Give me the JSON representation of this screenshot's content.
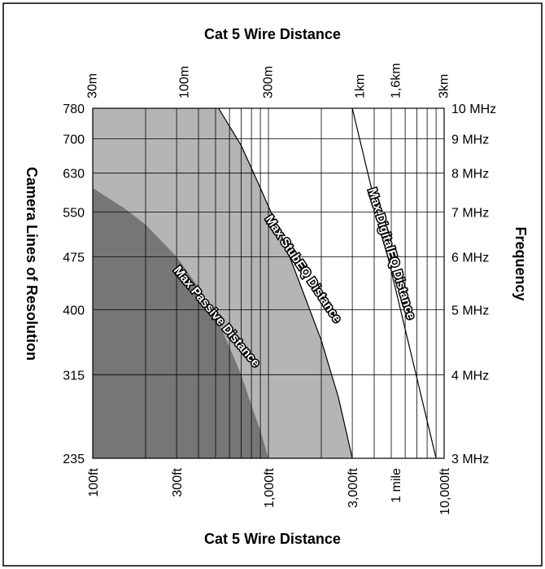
{
  "chart_data": {
    "type": "area",
    "title_top": "Cat 5  Wire Distance",
    "title_bottom": "Cat 5  Wire Distance",
    "ylabel_left": "Camera Lines of Resolution",
    "ylabel_right": "Frequency",
    "x_scale": "log",
    "x_range_ft": [
      100,
      10000
    ],
    "y_range_mhz": [
      3,
      10
    ],
    "grid": true,
    "top_ticks": [
      {
        "label": "30m",
        "ft": 98.4
      },
      {
        "label": "100m",
        "ft": 328
      },
      {
        "label": "300m",
        "ft": 984
      },
      {
        "label": "1km",
        "ft": 3281
      },
      {
        "label": "1,6km",
        "ft": 5249
      },
      {
        "label": "3km",
        "ft": 9843
      }
    ],
    "bottom_ticks": [
      {
        "label": "100ft",
        "ft": 100
      },
      {
        "label": "300ft",
        "ft": 300
      },
      {
        "label": "1,000ft",
        "ft": 1000
      },
      {
        "label": "3,000ft",
        "ft": 3000
      },
      {
        "label": "1 mile",
        "ft": 5280
      },
      {
        "label": "10,000ft",
        "ft": 10000
      }
    ],
    "left_ticks": [
      {
        "label": "780",
        "mhz": 10
      },
      {
        "label": "700",
        "mhz": 9
      },
      {
        "label": "630",
        "mhz": 8
      },
      {
        "label": "550",
        "mhz": 7
      },
      {
        "label": "475",
        "mhz": 6
      },
      {
        "label": "400",
        "mhz": 5
      },
      {
        "label": "315",
        "mhz": 4
      },
      {
        "label": "235",
        "mhz": 3
      }
    ],
    "right_ticks": [
      {
        "label": "10 MHz",
        "mhz": 10
      },
      {
        "label": "9 MHz",
        "mhz": 9
      },
      {
        "label": "8 MHz",
        "mhz": 8
      },
      {
        "label": "7 MHz",
        "mhz": 7
      },
      {
        "label": "6 MHz",
        "mhz": 6
      },
      {
        "label": "5 MHz",
        "mhz": 5
      },
      {
        "label": "4 MHz",
        "mhz": 4
      },
      {
        "label": "3 MHz",
        "mhz": 3
      }
    ],
    "series": [
      {
        "name": "Max Passive Distance",
        "color": "#767676",
        "points": [
          [
            100,
            7.6
          ],
          [
            150,
            7.1
          ],
          [
            200,
            6.7
          ],
          [
            300,
            6.0
          ],
          [
            400,
            5.4
          ],
          [
            500,
            4.9
          ],
          [
            600,
            4.4
          ],
          [
            700,
            4.0
          ],
          [
            800,
            3.6
          ],
          [
            900,
            3.3
          ],
          [
            1000,
            3.0
          ]
        ]
      },
      {
        "name": "Max StubEQ Distance",
        "color": "#b5b5b5",
        "points": [
          [
            520,
            10.0
          ],
          [
            700,
            8.8
          ],
          [
            900,
            7.6
          ],
          [
            1200,
            6.4
          ],
          [
            1500,
            5.5
          ],
          [
            2000,
            4.5
          ],
          [
            2500,
            3.7
          ],
          [
            3000,
            3.0
          ]
        ]
      },
      {
        "name": "Max DigitalEQ Distance",
        "color": "#000000",
        "points": [
          [
            3000,
            10.0
          ],
          [
            9000,
            3.0
          ]
        ]
      }
    ]
  }
}
